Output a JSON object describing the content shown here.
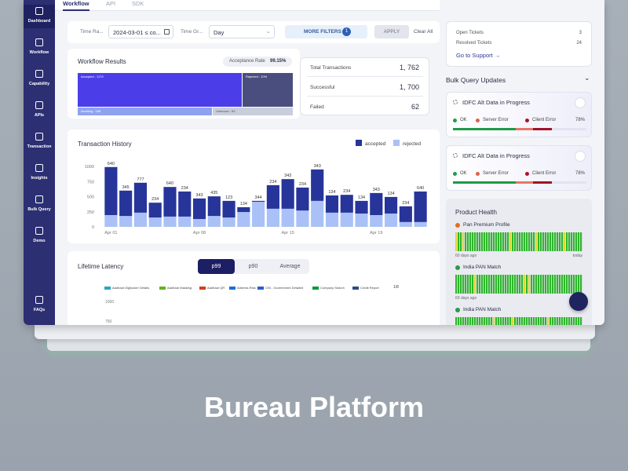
{
  "caption": "Bureau Platform",
  "tabs": [
    "Workflow",
    "API",
    "SDK"
  ],
  "sidebar": [
    "Dashboard",
    "Workflow",
    "Capability",
    "APIs",
    "Transaction",
    "Insights",
    "Bulk Query",
    "Demo",
    "FAQs"
  ],
  "filters": {
    "time_range_label": "Time Ra...",
    "time_range_value": "2024-03-01 ≤ co...",
    "time_group_label": "Time Gr...",
    "time_group_value": "Day",
    "more_filters": "MORE FILTERS",
    "more_filters_count": "1",
    "apply": "APPLY",
    "clear": "Clear All"
  },
  "workflow_results": {
    "title": "Workflow Results",
    "acceptance_label": "Acceptance Rate",
    "acceptance_value": "99.15%",
    "segments": [
      "Accepted : 1179",
      "Rejected : 10%",
      "Awaiting : 168",
      "Unknown : 83"
    ]
  },
  "stats": [
    {
      "label": "Total Transactions",
      "value": "1, 762"
    },
    {
      "label": "Successful",
      "value": "1, 700"
    },
    {
      "label": "Failed",
      "value": "62"
    }
  ],
  "chart_data": {
    "type": "bar",
    "title": "Transaction History",
    "categories": [
      "Apr 01",
      null,
      null,
      null,
      null,
      null,
      "Apr 08",
      null,
      null,
      null,
      null,
      null,
      "Apr 15",
      null,
      null,
      null,
      null,
      null,
      "Apr 19",
      null,
      null,
      null
    ],
    "series": [
      {
        "name": "accepted",
        "color": "#27359a",
        "values": [
          795,
          420,
          495,
          245,
          490,
          415,
          340,
          325,
          275,
          80,
          15,
          390,
          490,
          380,
          520,
          285,
          295,
          210,
          365,
          275,
          260,
          505
        ]
      },
      {
        "name": "rejected",
        "color": "#a9c1f6",
        "values": [
          195,
          180,
          235,
          155,
          170,
          170,
          130,
          180,
          155,
          245,
          415,
          300,
          300,
          270,
          430,
          235,
          235,
          220,
          195,
          220,
          80,
          80
        ]
      }
    ],
    "bar_labels": [
      "640",
      "345",
      "777",
      "234",
      "640",
      "234",
      "343",
      "435",
      "123",
      "134",
      "344",
      "234",
      "343",
      "234",
      "343",
      "134",
      "234",
      "134",
      "343",
      "134",
      "234",
      "640"
    ],
    "ylim": [
      0,
      1000
    ],
    "yticks": [
      0,
      250,
      500,
      750,
      1000
    ],
    "legend": "top-right",
    "stacked": true
  },
  "lifetime_latency": {
    "title": "Lifetime Latency",
    "tabs": [
      "p99",
      "p90",
      "Average"
    ],
    "legend": [
      {
        "name": "Aadhaar Digilocker Details",
        "color": "#2aa3c9"
      },
      {
        "name": "Aadhaar Masking",
        "color": "#6ab023"
      },
      {
        "name": "Aadhaar QR",
        "color": "#d83a1f"
      },
      {
        "name": "Address Risk",
        "color": "#1f6fd0"
      },
      {
        "name": "CIN - Government Detailed",
        "color": "#2b5fc9"
      },
      {
        "name": "Company Search",
        "color": "#0a9a3a"
      },
      {
        "name": "Credit Report",
        "color": "#2e4a8c"
      }
    ],
    "pager": "1/8",
    "ticks": [
      "1000",
      "750"
    ]
  },
  "support": {
    "rows": [
      [
        "Open Tickets",
        "3"
      ],
      [
        "Resolved Tickets",
        "24"
      ]
    ],
    "link": "Go to Support →"
  },
  "bulk_query": {
    "title": "Bulk Query Updates",
    "cards": [
      {
        "title": "IDFC Alt Data in Progress",
        "statuses": [
          "OK",
          "Server Error",
          "Client Error"
        ],
        "percent": "78%"
      },
      {
        "title": "IDFC Alt Data in Progress",
        "statuses": [
          "OK",
          "Server Error",
          "Client Error"
        ],
        "percent": "78%"
      }
    ]
  },
  "product_health": {
    "title": "Product Health",
    "items": [
      {
        "name": "Pan Premium Profile",
        "start": "60 days ago",
        "end": "today"
      },
      {
        "name": "India PAN Match",
        "start": "60 days ago"
      },
      {
        "name": "India PAN Match"
      }
    ]
  }
}
